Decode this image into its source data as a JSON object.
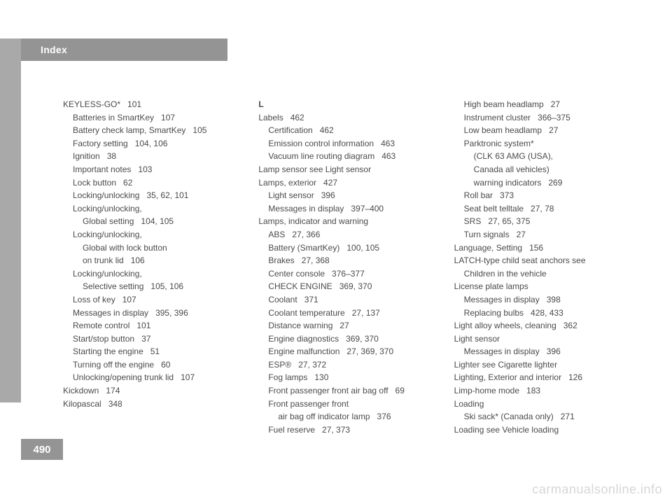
{
  "header": {
    "title": "Index"
  },
  "page_number": "490",
  "watermark": "carmanualsonline.info",
  "style": {
    "page_bg": "#ffffff",
    "tab_bg": "#a9a9a9",
    "bar_bg": "#949494",
    "text_color": "#4a4a4a",
    "header_text_color": "#ffffff",
    "font_size_body": 12,
    "font_size_header": 14,
    "font_size_pagenum": 15,
    "watermark_color": "#d6d6d6"
  },
  "columns": [
    [
      {
        "indent": 0,
        "text": "KEYLESS-GO*",
        "pages": "101"
      },
      {
        "indent": 1,
        "text": "Batteries in SmartKey",
        "pages": "107"
      },
      {
        "indent": 1,
        "text": "Battery check lamp, SmartKey",
        "pages": "105"
      },
      {
        "indent": 1,
        "text": "Factory setting",
        "pages": "104, 106"
      },
      {
        "indent": 1,
        "text": "Ignition",
        "pages": "38"
      },
      {
        "indent": 1,
        "text": "Important notes",
        "pages": "103"
      },
      {
        "indent": 1,
        "text": "Lock button",
        "pages": "62"
      },
      {
        "indent": 1,
        "text": "Locking/unlocking",
        "pages": "35, 62, 101"
      },
      {
        "indent": 1,
        "text": "Locking/unlocking,",
        "pages": ""
      },
      {
        "indent": 2,
        "text": "Global setting",
        "pages": "104, 105"
      },
      {
        "indent": 1,
        "text": "Locking/unlocking,",
        "pages": ""
      },
      {
        "indent": 2,
        "text": "Global with lock button",
        "pages": ""
      },
      {
        "indent": 2,
        "text": "on trunk lid",
        "pages": "106"
      },
      {
        "indent": 1,
        "text": "Locking/unlocking,",
        "pages": ""
      },
      {
        "indent": 2,
        "text": "Selective setting",
        "pages": "105, 106"
      },
      {
        "indent": 1,
        "text": "Loss of key",
        "pages": "107"
      },
      {
        "indent": 1,
        "text": "Messages in display",
        "pages": "395, 396"
      },
      {
        "indent": 1,
        "text": "Remote control",
        "pages": "101"
      },
      {
        "indent": 1,
        "text": "Start/stop button",
        "pages": "37"
      },
      {
        "indent": 1,
        "text": "Starting the engine",
        "pages": "51"
      },
      {
        "indent": 1,
        "text": "Turning off the engine",
        "pages": "60"
      },
      {
        "indent": 1,
        "text": "Unlocking/opening trunk lid",
        "pages": "107"
      },
      {
        "indent": 0,
        "text": "Kickdown",
        "pages": "174"
      },
      {
        "indent": 0,
        "text": "Kilopascal",
        "pages": "348"
      }
    ],
    [
      {
        "indent": 0,
        "text": "L",
        "pages": "",
        "bold": true
      },
      {
        "indent": 0,
        "text": "Labels",
        "pages": "462"
      },
      {
        "indent": 1,
        "text": "Certification",
        "pages": "462"
      },
      {
        "indent": 1,
        "text": "Emission control information",
        "pages": "463"
      },
      {
        "indent": 1,
        "text": "Vacuum line routing diagram",
        "pages": "463"
      },
      {
        "indent": 0,
        "text": "Lamp sensor see Light sensor",
        "pages": ""
      },
      {
        "indent": 0,
        "text": "Lamps, exterior",
        "pages": "427"
      },
      {
        "indent": 1,
        "text": "Light sensor",
        "pages": "396"
      },
      {
        "indent": 1,
        "text": "Messages in display",
        "pages": "397–400"
      },
      {
        "indent": 0,
        "text": "Lamps, indicator and warning",
        "pages": ""
      },
      {
        "indent": 1,
        "text": "ABS",
        "pages": "27, 366"
      },
      {
        "indent": 1,
        "text": "Battery (SmartKey)",
        "pages": "100, 105"
      },
      {
        "indent": 1,
        "text": "Brakes",
        "pages": "27, 368"
      },
      {
        "indent": 1,
        "text": "Center console",
        "pages": "376–377"
      },
      {
        "indent": 1,
        "text": "CHECK ENGINE",
        "pages": "369, 370"
      },
      {
        "indent": 1,
        "text": "Coolant",
        "pages": "371"
      },
      {
        "indent": 1,
        "text": "Coolant temperature",
        "pages": "27, 137"
      },
      {
        "indent": 1,
        "text": "Distance warning",
        "pages": "27"
      },
      {
        "indent": 1,
        "text": "Engine diagnostics",
        "pages": "369, 370"
      },
      {
        "indent": 1,
        "text": "Engine malfunction",
        "pages": "27, 369, 370"
      },
      {
        "indent": 1,
        "text": "ESP®",
        "pages": "27, 372"
      },
      {
        "indent": 1,
        "text": "Fog lamps",
        "pages": "130"
      },
      {
        "indent": 1,
        "text": "Front passenger front air bag off",
        "pages": "69"
      },
      {
        "indent": 1,
        "text": "Front passenger front",
        "pages": ""
      },
      {
        "indent": 2,
        "text": "air bag off indicator lamp",
        "pages": "376"
      },
      {
        "indent": 1,
        "text": "Fuel reserve",
        "pages": "27, 373"
      }
    ],
    [
      {
        "indent": 1,
        "text": "High beam headlamp",
        "pages": "27"
      },
      {
        "indent": 1,
        "text": "Instrument cluster",
        "pages": "366–375"
      },
      {
        "indent": 1,
        "text": "Low beam headlamp",
        "pages": "27"
      },
      {
        "indent": 1,
        "text": "Parktronic system*",
        "pages": ""
      },
      {
        "indent": 2,
        "text": "(CLK 63 AMG (USA),",
        "pages": ""
      },
      {
        "indent": 2,
        "text": "Canada all vehicles)",
        "pages": ""
      },
      {
        "indent": 2,
        "text": "warning indicators",
        "pages": "269"
      },
      {
        "indent": 1,
        "text": "Roll bar",
        "pages": "373"
      },
      {
        "indent": 1,
        "text": "Seat belt telltale",
        "pages": "27, 78"
      },
      {
        "indent": 1,
        "text": "SRS",
        "pages": "27, 65, 375"
      },
      {
        "indent": 1,
        "text": "Turn signals",
        "pages": "27"
      },
      {
        "indent": 0,
        "text": "Language, Setting",
        "pages": "156"
      },
      {
        "indent": 0,
        "text": "LATCH-type child seat anchors see",
        "pages": ""
      },
      {
        "indent": 1,
        "text": "Children in the vehicle",
        "pages": ""
      },
      {
        "indent": 0,
        "text": "License plate lamps",
        "pages": ""
      },
      {
        "indent": 1,
        "text": "Messages in display",
        "pages": "398"
      },
      {
        "indent": 1,
        "text": "Replacing bulbs",
        "pages": "428, 433"
      },
      {
        "indent": 0,
        "text": "Light alloy wheels, cleaning",
        "pages": "362"
      },
      {
        "indent": 0,
        "text": "Light sensor",
        "pages": ""
      },
      {
        "indent": 1,
        "text": "Messages in display",
        "pages": "396"
      },
      {
        "indent": 0,
        "text": "Lighter see Cigarette lighter",
        "pages": ""
      },
      {
        "indent": 0,
        "text": "Lighting, Exterior and interior",
        "pages": "126"
      },
      {
        "indent": 0,
        "text": "Limp-home mode",
        "pages": "183"
      },
      {
        "indent": 0,
        "text": "Loading",
        "pages": ""
      },
      {
        "indent": 1,
        "text": "Ski sack* (Canada only)",
        "pages": "271"
      },
      {
        "indent": 0,
        "text": "Loading see Vehicle loading",
        "pages": ""
      }
    ]
  ]
}
